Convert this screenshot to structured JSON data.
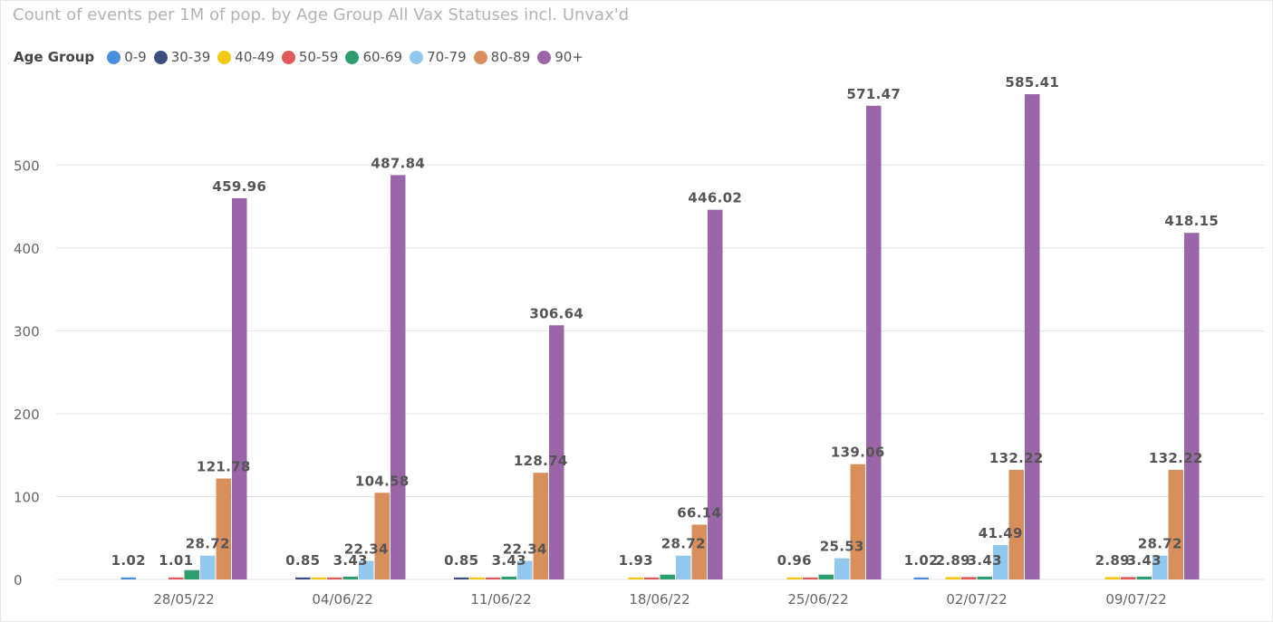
{
  "chart_data": {
    "type": "bar",
    "title": "Count of events per 1M of pop. by Age Group All Vax Statuses incl. Unvax'd",
    "legend_title": "Age Group",
    "legend_position": "top-left",
    "grid": true,
    "ylim": [
      0,
      600
    ],
    "yticks": [
      0,
      100,
      200,
      300,
      400,
      500
    ],
    "categories": [
      "28/05/22",
      "04/06/22",
      "11/06/22",
      "18/06/22",
      "25/06/22",
      "02/07/22",
      "09/07/22"
    ],
    "series": [
      {
        "name": "0-9",
        "color": "#4a8fde",
        "values": [
          1.02,
          0,
          0,
          0,
          0,
          1.02,
          0
        ]
      },
      {
        "name": "30-39",
        "color": "#3d4f7f",
        "values": [
          0,
          0.85,
          0.85,
          0,
          0,
          0,
          0
        ]
      },
      {
        "name": "40-49",
        "color": "#f2c811",
        "values": [
          0,
          0.85,
          0.85,
          1.93,
          0.96,
          2.89,
          2.89
        ]
      },
      {
        "name": "50-59",
        "color": "#e05a5a",
        "values": [
          1.01,
          0.85,
          0.85,
          1.93,
          0.96,
          2.89,
          2.89
        ]
      },
      {
        "name": "60-69",
        "color": "#2e9e6e",
        "values": [
          11.2,
          3.43,
          3.43,
          5.8,
          5.8,
          3.43,
          3.43
        ]
      },
      {
        "name": "70-79",
        "color": "#92c8ee",
        "values": [
          28.72,
          22.34,
          22.34,
          28.72,
          25.53,
          41.49,
          28.72
        ]
      },
      {
        "name": "80-89",
        "color": "#d98f5b",
        "values": [
          121.78,
          104.58,
          128.74,
          66.14,
          139.06,
          132.22,
          132.22
        ]
      },
      {
        "name": "90+",
        "color": "#9b66a8",
        "values": [
          459.96,
          487.84,
          306.64,
          446.02,
          571.47,
          585.41,
          418.15
        ]
      }
    ],
    "data_labels": [
      [
        {
          "series": 0,
          "text": "1.02"
        },
        {
          "series": 3,
          "text": "1.01"
        },
        {
          "series": 5,
          "text": "28.72"
        },
        {
          "series": 6,
          "text": "121.78"
        },
        {
          "series": 7,
          "text": "459.96"
        }
      ],
      [
        {
          "series": 1,
          "text": "0.85"
        },
        {
          "series": 4,
          "text": "3.43"
        },
        {
          "series": 5,
          "text": "22.34"
        },
        {
          "series": 6,
          "text": "104.58"
        },
        {
          "series": 7,
          "text": "487.84"
        }
      ],
      [
        {
          "series": 1,
          "text": "0.85"
        },
        {
          "series": 4,
          "text": "3.43"
        },
        {
          "series": 5,
          "text": "22.34"
        },
        {
          "series": 6,
          "text": "128.74"
        },
        {
          "series": 7,
          "text": "306.64"
        }
      ],
      [
        {
          "series": 2,
          "text": "1.93"
        },
        {
          "series": 5,
          "text": "28.72"
        },
        {
          "series": 6,
          "text": "66.14"
        },
        {
          "series": 7,
          "text": "446.02"
        }
      ],
      [
        {
          "series": 2,
          "text": "0.96"
        },
        {
          "series": 5,
          "text": "25.53"
        },
        {
          "series": 6,
          "text": "139.06"
        },
        {
          "series": 7,
          "text": "571.47"
        }
      ],
      [
        {
          "series": 0,
          "text": "1.02"
        },
        {
          "series": 2,
          "text": "2.89"
        },
        {
          "series": 4,
          "text": "3.43"
        },
        {
          "series": 5,
          "text": "41.49"
        },
        {
          "series": 6,
          "text": "132.22"
        },
        {
          "series": 7,
          "text": "585.41"
        }
      ],
      [
        {
          "series": 2,
          "text": "2.89"
        },
        {
          "series": 4,
          "text": "3.43"
        },
        {
          "series": 5,
          "text": "28.72"
        },
        {
          "series": 6,
          "text": "132.22"
        },
        {
          "series": 7,
          "text": "418.15"
        }
      ]
    ]
  }
}
